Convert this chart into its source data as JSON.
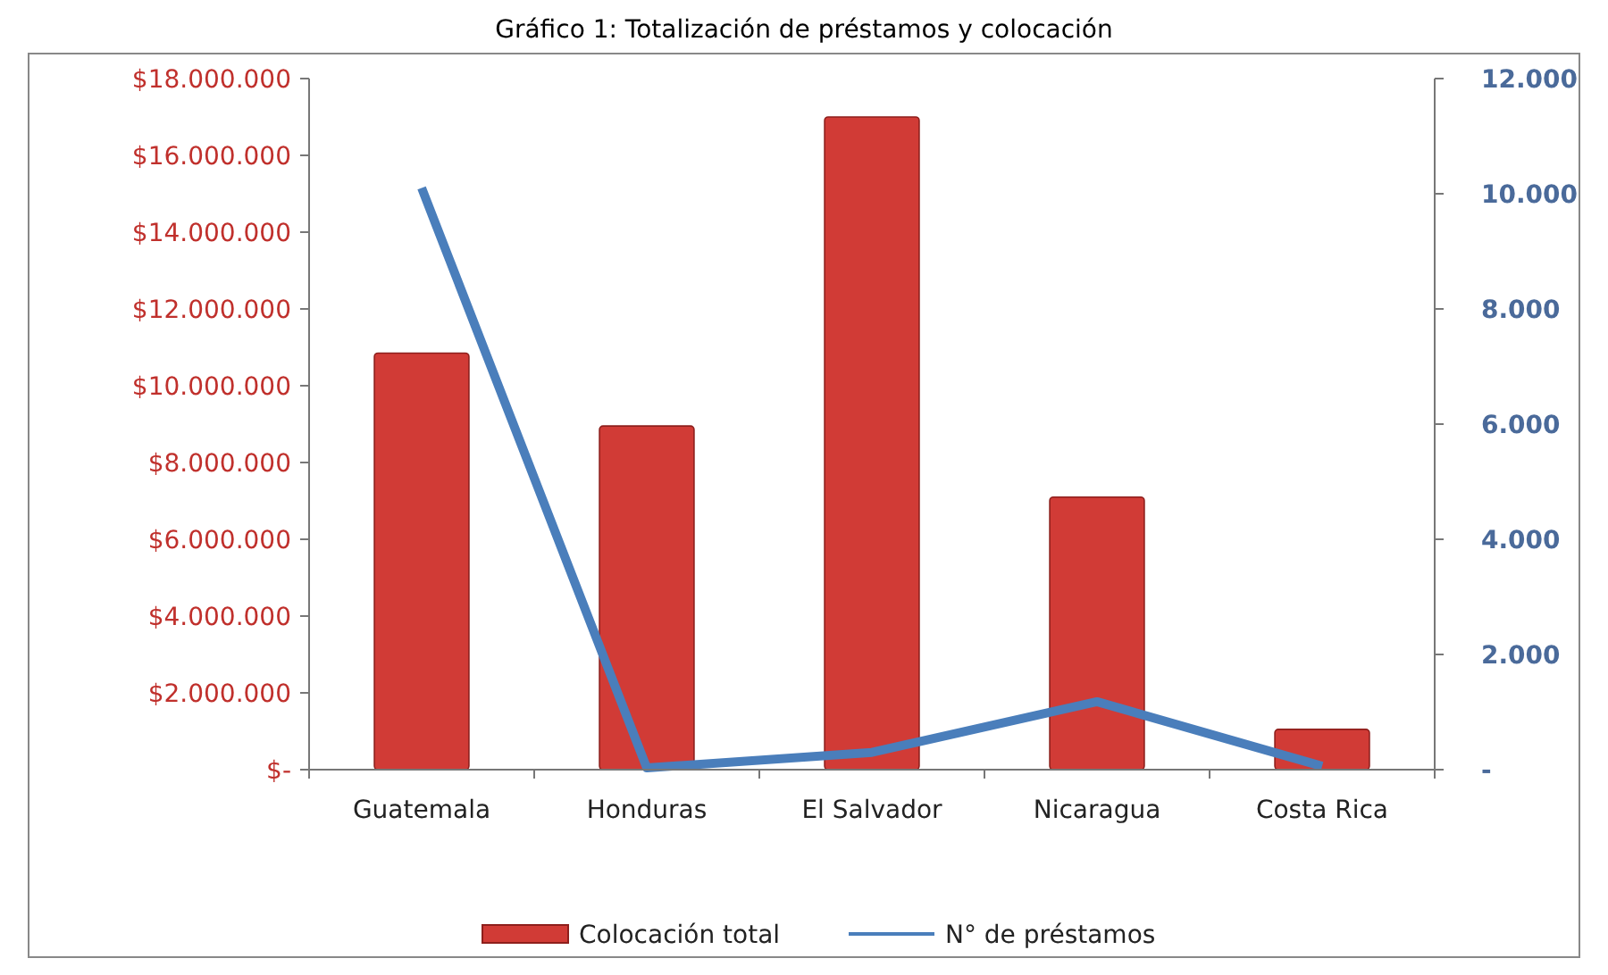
{
  "chart_data": {
    "type": "bar",
    "title": "Gráfico 1: Totalización de préstamos y colocación",
    "categories": [
      "Guatemala",
      "Honduras",
      "El Salvador",
      "Nicaragua",
      "Costa Rica"
    ],
    "series": [
      {
        "name": "Colocación total",
        "color": "#d13b36",
        "values": [
          10850000,
          8950000,
          17000000,
          7100000,
          1050000
        ]
      },
      {
        "name": "N° de préstamos",
        "type": "line",
        "axis": "y2",
        "color": "#4a7ebb",
        "values": [
          10100,
          30,
          300,
          1180,
          60
        ]
      }
    ],
    "ylim": [
      0,
      18000000
    ],
    "yticks": [
      {
        "value": 0,
        "label": "$-"
      },
      {
        "value": 2000000,
        "label": "$2.000.000"
      },
      {
        "value": 4000000,
        "label": "$4.000.000"
      },
      {
        "value": 6000000,
        "label": "$6.000.000"
      },
      {
        "value": 8000000,
        "label": "$8.000.000"
      },
      {
        "value": 10000000,
        "label": "$10.000.000"
      },
      {
        "value": 12000000,
        "label": "$12.000.000"
      },
      {
        "value": 14000000,
        "label": "$14.000.000"
      },
      {
        "value": 16000000,
        "label": "$16.000.000"
      },
      {
        "value": 18000000,
        "label": "$18.000.000"
      }
    ],
    "y2lim": [
      0,
      12000
    ],
    "y2ticks": [
      {
        "value": 0,
        "label": "-"
      },
      {
        "value": 2000,
        "label": "2.000"
      },
      {
        "value": 4000,
        "label": "4.000"
      },
      {
        "value": 6000,
        "label": "6.000"
      },
      {
        "value": 8000,
        "label": "8.000"
      },
      {
        "value": 10000,
        "label": "10.000"
      },
      {
        "value": 12000,
        "label": "12.000"
      }
    ],
    "legend": "bottom",
    "grid": false,
    "marker": "none",
    "line_style": "solid"
  }
}
